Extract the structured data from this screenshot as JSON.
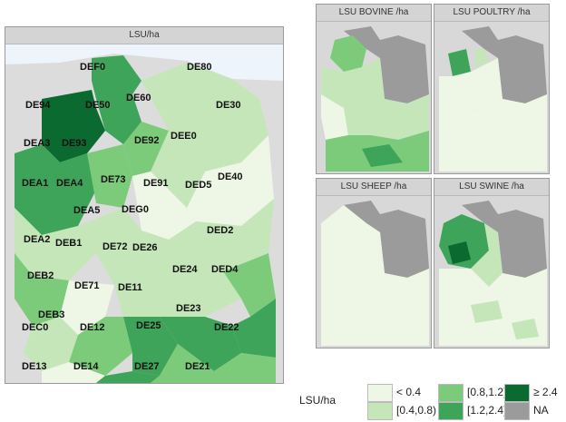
{
  "main_map": {
    "title": "LSU/ha",
    "labels": [
      "DEF0",
      "DE80",
      "DE94",
      "DE50",
      "DE60",
      "DE30",
      "DE93",
      "DE92",
      "DEE0",
      "DEA3",
      "DE91",
      "DE40",
      "DEA1",
      "DEA4",
      "DE73",
      "DED5",
      "DEA5",
      "DEG0",
      "DED2",
      "DEA2",
      "DEB1",
      "DE72",
      "DE26",
      "DED4",
      "DE24",
      "DEB2",
      "DE71",
      "DE11",
      "DE23",
      "DEB3",
      "DE25",
      "DEC0",
      "DE12",
      "DE22",
      "DE13",
      "DE14",
      "DE27",
      "DE21"
    ]
  },
  "small_maps": [
    {
      "title": "LSU BOVINE /ha"
    },
    {
      "title": "LSU POULTRY /ha"
    },
    {
      "title": "LSU SHEEP /ha"
    },
    {
      "title": "LSU SWINE /ha"
    }
  ],
  "legend": {
    "title": "LSU/ha",
    "items": [
      {
        "label": "< 0.4",
        "color": "#eef7e6"
      },
      {
        "label": "[0.4,0.8)",
        "color": "#c5e6b8"
      },
      {
        "label": "[0.8,1.2)",
        "color": "#7ccb7a"
      },
      {
        "label": "[1.2,2.4)",
        "color": "#3da45a"
      },
      {
        "label": "≥ 2.4",
        "color": "#0b6a2f"
      },
      {
        "label": "NA",
        "color": "#9b9b9b"
      }
    ]
  }
}
